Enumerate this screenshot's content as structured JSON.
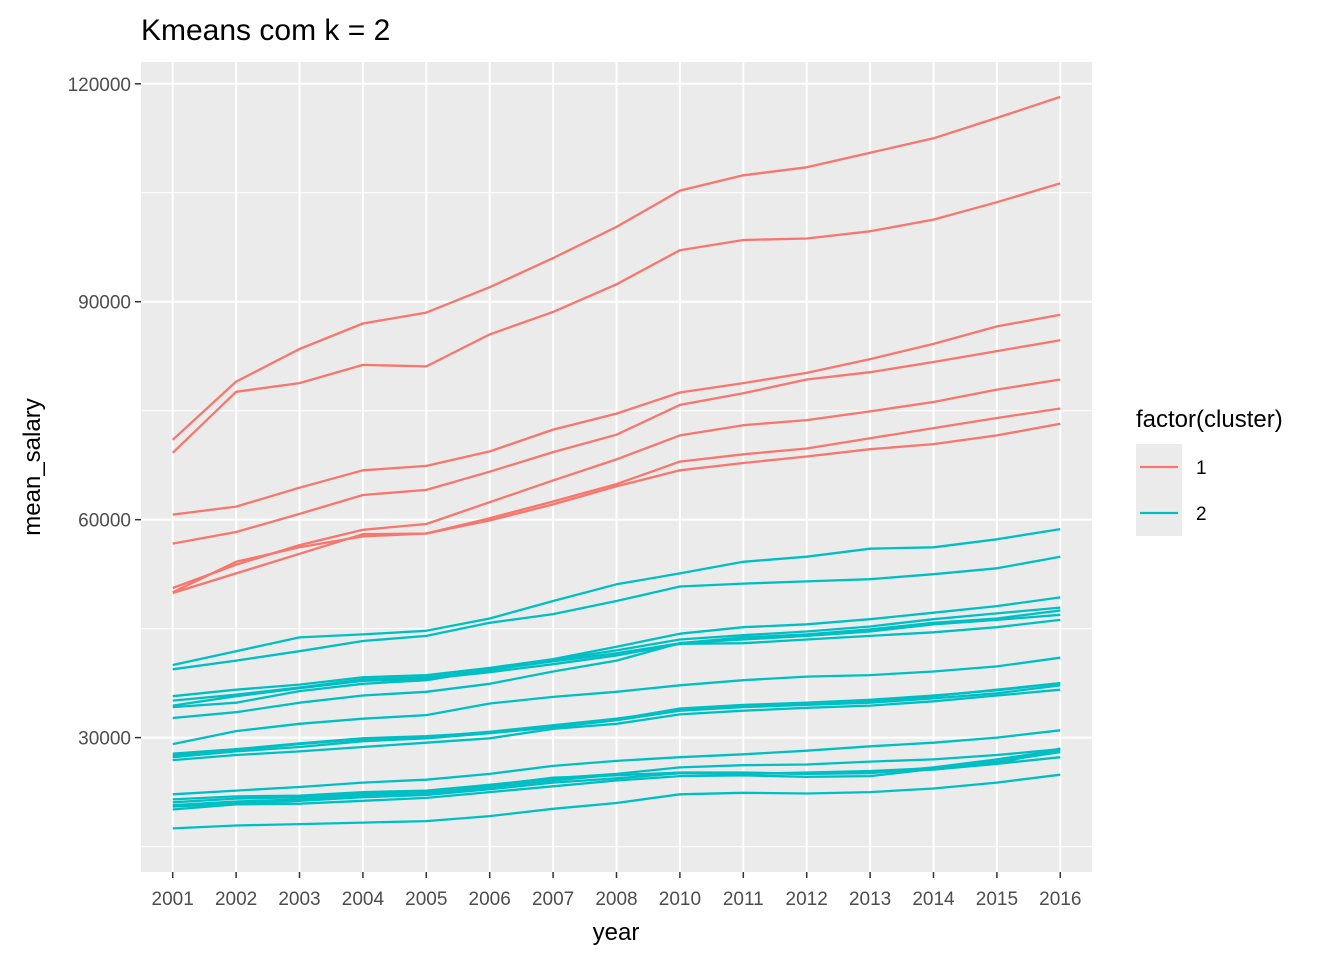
{
  "chart_data": {
    "type": "line",
    "title": "Kmeans com k = 2",
    "xlabel": "year",
    "ylabel": "mean_salary",
    "categories": [
      "2001",
      "2002",
      "2003",
      "2004",
      "2005",
      "2006",
      "2007",
      "2008",
      "2010",
      "2011",
      "2012",
      "2013",
      "2014",
      "2015",
      "2016"
    ],
    "y_ticks": [
      30000,
      60000,
      90000,
      120000
    ],
    "y_tick_labels": [
      "30000",
      "60000",
      "90000",
      "120000"
    ],
    "ylim": [
      11500,
      123000
    ],
    "grid": true,
    "legend": {
      "title": "factor(cluster)",
      "placement": "right",
      "entries": [
        {
          "label": "1",
          "color": "#F8766D"
        },
        {
          "label": "2",
          "color": "#00BFC4"
        }
      ]
    },
    "series": [
      {
        "cluster": "1",
        "values": [
          71000,
          79000,
          83500,
          87000,
          88500,
          92000,
          96000,
          100300,
          105300,
          107400,
          108500,
          110500,
          112500,
          115300,
          118200
        ]
      },
      {
        "cluster": "1",
        "values": [
          69200,
          77600,
          78800,
          81300,
          81100,
          85500,
          88600,
          92400,
          97100,
          98500,
          98700,
          99700,
          101300,
          103700,
          106300
        ]
      },
      {
        "cluster": "1",
        "values": [
          60700,
          61800,
          64400,
          66800,
          67400,
          69400,
          72400,
          74600,
          77500,
          78800,
          80200,
          82100,
          84200,
          86600,
          88200
        ]
      },
      {
        "cluster": "1",
        "values": [
          56700,
          58300,
          60800,
          63400,
          64100,
          66600,
          69300,
          71700,
          75800,
          77400,
          79300,
          80300,
          81700,
          83200,
          84700
        ]
      },
      {
        "cluster": "1",
        "values": [
          50600,
          53800,
          56500,
          58600,
          59400,
          62400,
          65400,
          68300,
          71600,
          73000,
          73700,
          74900,
          76200,
          77900,
          79300
        ]
      },
      {
        "cluster": "1",
        "values": [
          49900,
          52600,
          55300,
          58000,
          58100,
          60200,
          62500,
          64900,
          68000,
          69000,
          69800,
          71200,
          72600,
          74000,
          75300
        ]
      },
      {
        "cluster": "1",
        "values": [
          50000,
          54200,
          56200,
          57700,
          58100,
          59900,
          62100,
          64600,
          66800,
          67800,
          68700,
          69700,
          70400,
          71600,
          73200
        ]
      },
      {
        "cluster": "2",
        "values": [
          40000,
          41900,
          43800,
          44200,
          44700,
          46400,
          48800,
          51100,
          52600,
          54200,
          54900,
          56000,
          56200,
          57300,
          58700
        ]
      },
      {
        "cluster": "2",
        "values": [
          39400,
          40600,
          41900,
          43300,
          44000,
          45800,
          47000,
          48800,
          50800,
          51200,
          51500,
          51800,
          52500,
          53300,
          54900
        ]
      },
      {
        "cluster": "2",
        "values": [
          35700,
          36600,
          37300,
          38300,
          38600,
          39600,
          40800,
          42500,
          44300,
          45200,
          45600,
          46300,
          47200,
          48100,
          49300
        ]
      },
      {
        "cluster": "2",
        "values": [
          35100,
          35900,
          36900,
          38000,
          38300,
          39300,
          40700,
          42000,
          43500,
          44100,
          44600,
          45300,
          46300,
          47100,
          47900
        ]
      },
      {
        "cluster": "2",
        "values": [
          34200,
          34800,
          36400,
          37400,
          37900,
          39300,
          40500,
          41600,
          43000,
          43800,
          44200,
          44900,
          45800,
          46400,
          47500
        ]
      },
      {
        "cluster": "2",
        "values": [
          34400,
          35700,
          36800,
          37800,
          38100,
          39000,
          40100,
          41300,
          42900,
          43000,
          43500,
          44000,
          44500,
          45200,
          46200
        ]
      },
      {
        "cluster": "2",
        "values": [
          32700,
          33500,
          34800,
          35800,
          36300,
          37400,
          39100,
          40600,
          43000,
          43500,
          44000,
          44600,
          45600,
          46200,
          46900
        ]
      },
      {
        "cluster": "2",
        "values": [
          29100,
          30900,
          31900,
          32600,
          33100,
          34700,
          35600,
          36300,
          37200,
          37900,
          38400,
          38600,
          39100,
          39800,
          41000
        ]
      },
      {
        "cluster": "2",
        "values": [
          27800,
          28400,
          29200,
          29900,
          30200,
          30700,
          31500,
          32500,
          34000,
          34500,
          34800,
          35200,
          35800,
          36500,
          37500
        ]
      },
      {
        "cluster": "2",
        "values": [
          27500,
          28300,
          29100,
          29800,
          30100,
          30800,
          31700,
          32600,
          33800,
          34300,
          34600,
          35000,
          35700,
          36600,
          37500
        ]
      },
      {
        "cluster": "2",
        "values": [
          27300,
          28100,
          28700,
          29500,
          29900,
          30600,
          31400,
          32400,
          33700,
          34200,
          34500,
          34800,
          35400,
          36100,
          37200
        ]
      },
      {
        "cluster": "2",
        "values": [
          26900,
          27600,
          28100,
          28700,
          29300,
          29900,
          31200,
          31900,
          33200,
          33700,
          34100,
          34400,
          35000,
          35800,
          36600
        ]
      },
      {
        "cluster": "2",
        "values": [
          22200,
          22700,
          23200,
          23800,
          24200,
          25000,
          26100,
          26800,
          27300,
          27700,
          28200,
          28800,
          29300,
          30000,
          31000
        ]
      },
      {
        "cluster": "2",
        "values": [
          21500,
          21900,
          22000,
          22500,
          22700,
          23500,
          24400,
          25000,
          25900,
          26200,
          26300,
          26700,
          27000,
          27600,
          28400
        ]
      },
      {
        "cluster": "2",
        "values": [
          21100,
          21600,
          21800,
          22300,
          22500,
          23400,
          24500,
          24800,
          25200,
          25200,
          25000,
          25200,
          25600,
          26400,
          28500
        ]
      },
      {
        "cluster": "2",
        "values": [
          20700,
          21200,
          21500,
          22100,
          22300,
          23200,
          24100,
          24900,
          25100,
          25100,
          25000,
          25100,
          25900,
          27000,
          28300
        ]
      },
      {
        "cluster": "2",
        "values": [
          20500,
          20900,
          21300,
          21800,
          22100,
          22900,
          23800,
          24400,
          25100,
          25000,
          25200,
          25400,
          25800,
          26700,
          28000
        ]
      },
      {
        "cluster": "2",
        "values": [
          20100,
          20800,
          20900,
          21300,
          21700,
          22500,
          23300,
          24100,
          24700,
          24800,
          24600,
          24700,
          25700,
          26400,
          27300
        ]
      },
      {
        "cluster": "2",
        "values": [
          17500,
          17900,
          18100,
          18300,
          18500,
          19200,
          20200,
          21000,
          22200,
          22400,
          22300,
          22500,
          23000,
          23800,
          24900
        ]
      }
    ]
  }
}
